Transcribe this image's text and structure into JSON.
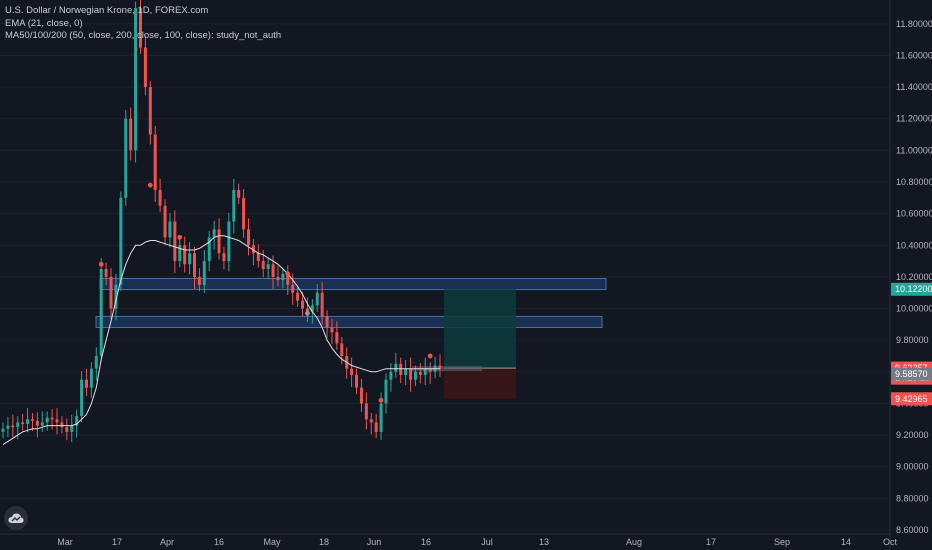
{
  "legend": {
    "title": "U.S. Dollar / Norwegian Krone, 1D, FOREX.com",
    "ema": "EMA (21, close, 0)",
    "ma": "MA50/100/200 (50, close, 200, close, 100, close): study_not_auth"
  },
  "icons": {
    "logo": "tradingview-cloud-icon"
  },
  "colors": {
    "background": "#131722",
    "up": "#26a69a",
    "down": "#ef5350",
    "ema": "#e0e0e0",
    "zone_fill": "#1e3a63",
    "zone_border": "#4a6fa5",
    "target_zone": "#0d3b3b",
    "stop_zone": "#3b1516",
    "grid": "#1e222d"
  },
  "chart_data": {
    "type": "candlestick",
    "symbol": "USDNOK",
    "ylim": [
      8.6,
      11.9
    ],
    "y_ticks": [
      "11.80000",
      "11.60000",
      "11.40000",
      "11.20000",
      "11.00000",
      "10.80000",
      "10.60000",
      "10.40000",
      "10.20000",
      "10.00000",
      "9.80000",
      "9.60000",
      "9.40000",
      "9.20000",
      "9.00000",
      "8.80000",
      "8.60000"
    ],
    "x_labels": [
      "Mar",
      "17",
      "Apr",
      "16",
      "May",
      "18",
      "Jun",
      "16",
      "Jul",
      "13",
      "Aug",
      "17",
      "Sep",
      "14",
      "Oct"
    ],
    "closes": [
      9.24,
      9.26,
      9.25,
      9.28,
      9.27,
      9.3,
      9.29,
      9.26,
      9.28,
      9.31,
      9.3,
      9.28,
      9.25,
      9.22,
      9.26,
      9.32,
      9.55,
      9.5,
      9.62,
      9.7,
      10.25,
      10.2,
      10.0,
      10.15,
      10.7,
      11.2,
      11.0,
      11.9,
      11.65,
      11.4,
      11.1,
      10.75,
      10.65,
      10.45,
      10.55,
      10.3,
      10.4,
      10.28,
      10.35,
      10.2,
      10.15,
      10.3,
      10.45,
      10.5,
      10.35,
      10.3,
      10.55,
      10.75,
      10.7,
      10.5,
      10.4,
      10.35,
      10.3,
      10.25,
      10.28,
      10.2,
      10.18,
      10.22,
      10.15,
      10.1,
      10.05,
      10.0,
      9.98,
      10.02,
      10.1,
      9.95,
      9.88,
      9.85,
      9.78,
      9.7,
      9.62,
      9.58,
      9.5,
      9.4,
      9.3,
      9.28,
      9.22,
      9.4,
      9.55,
      9.6,
      9.65,
      9.58,
      9.62,
      9.55,
      9.6,
      9.58,
      9.62,
      9.6,
      9.64,
      9.62
    ],
    "ema21_approx": [
      9.14,
      9.16,
      9.18,
      9.2,
      9.22,
      9.23,
      9.24,
      9.24,
      9.25,
      9.26,
      9.26,
      9.26,
      9.26,
      9.26,
      9.26,
      9.27,
      9.3,
      9.33,
      9.4,
      9.5,
      9.68,
      9.8,
      9.92,
      10.05,
      10.18,
      10.28,
      10.35,
      10.4,
      10.4,
      10.42,
      10.43,
      10.43,
      10.42,
      10.41,
      10.4,
      10.39,
      10.38,
      10.37,
      10.37,
      10.37,
      10.38,
      10.4,
      10.42,
      10.45,
      10.46,
      10.46,
      10.45,
      10.44,
      10.43,
      10.41,
      10.39,
      10.37,
      10.35,
      10.34,
      10.32,
      10.3,
      10.28,
      10.25,
      10.22,
      10.18,
      10.14,
      10.09,
      10.03,
      9.98,
      9.94,
      9.88,
      9.8,
      9.75,
      9.71,
      9.68,
      9.66,
      9.64,
      9.63,
      9.62,
      9.61,
      9.6,
      9.6,
      9.61,
      9.62,
      9.62,
      9.62,
      9.62,
      9.62,
      9.62,
      9.62,
      9.62,
      9.62,
      9.62,
      9.62,
      9.62
    ],
    "zones": [
      {
        "from": 10.12,
        "to": 10.19
      },
      {
        "from": 9.88,
        "to": 9.95
      }
    ],
    "position": {
      "entry": 9.6235,
      "target": 10.122,
      "stop": 9.42965
    },
    "price_tags": [
      {
        "label": "10.12200",
        "value": 10.122,
        "color": "#26a69a"
      },
      {
        "label": "9.62357",
        "value": 9.62357,
        "color": "#ef5350"
      },
      {
        "label": "14:23:15",
        "value": 9.56,
        "color": "#ef5350"
      },
      {
        "label": "9.58570",
        "value": 9.5857,
        "color": "#787b86"
      },
      {
        "label": "9.42965",
        "value": 9.42965,
        "color": "#ef5350"
      }
    ]
  }
}
